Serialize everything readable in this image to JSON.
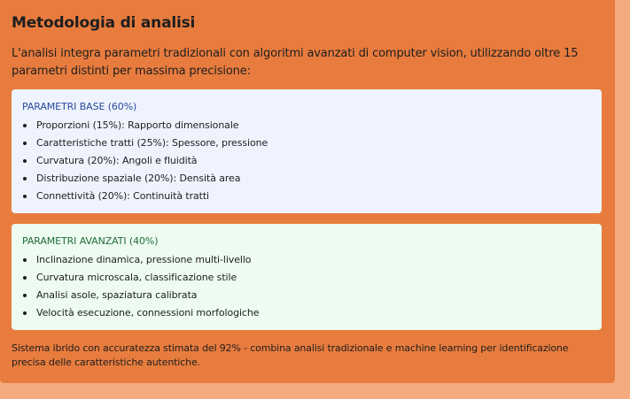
{
  "methodology": {
    "title": "Metodologia di analisi",
    "intro": "L'analisi integra parametri tradizionali con algoritmi avanzati di computer vision, utilizzando oltre 15 parametri distinti per massima precisione:",
    "base": {
      "title": "PARAMETRI BASE (60%)",
      "items": [
        "Proporzioni (15%): Rapporto dimensionale",
        "Caratteristiche tratti (25%): Spessore, pressione",
        "Curvatura (20%): Angoli e fluidità",
        "Distribuzione spaziale (20%): Densità area",
        "Connettività (20%): Continuità tratti"
      ]
    },
    "advanced": {
      "title": "PARAMETRI AVANZATI (40%)",
      "items": [
        "Inclinazione dinamica, pressione multi-livello",
        "Curvatura microscala, classificazione stile",
        "Analisi asole, spaziatura calibrata",
        "Velocità esecuzione, connessioni morfologiche"
      ]
    },
    "footer": "Sistema ibrido con accuratezza stimata del 92% - combina analisi tradizionale e machine learning per identificazione precisa delle caratteristiche autentiche."
  },
  "colors": {
    "panel": "#e87c3e",
    "page_background": "#f5ab7e",
    "base_box": "#eef3fe",
    "base_title": "#2a4a99",
    "advanced_box": "#edfbf1",
    "advanced_title": "#226b3a"
  }
}
